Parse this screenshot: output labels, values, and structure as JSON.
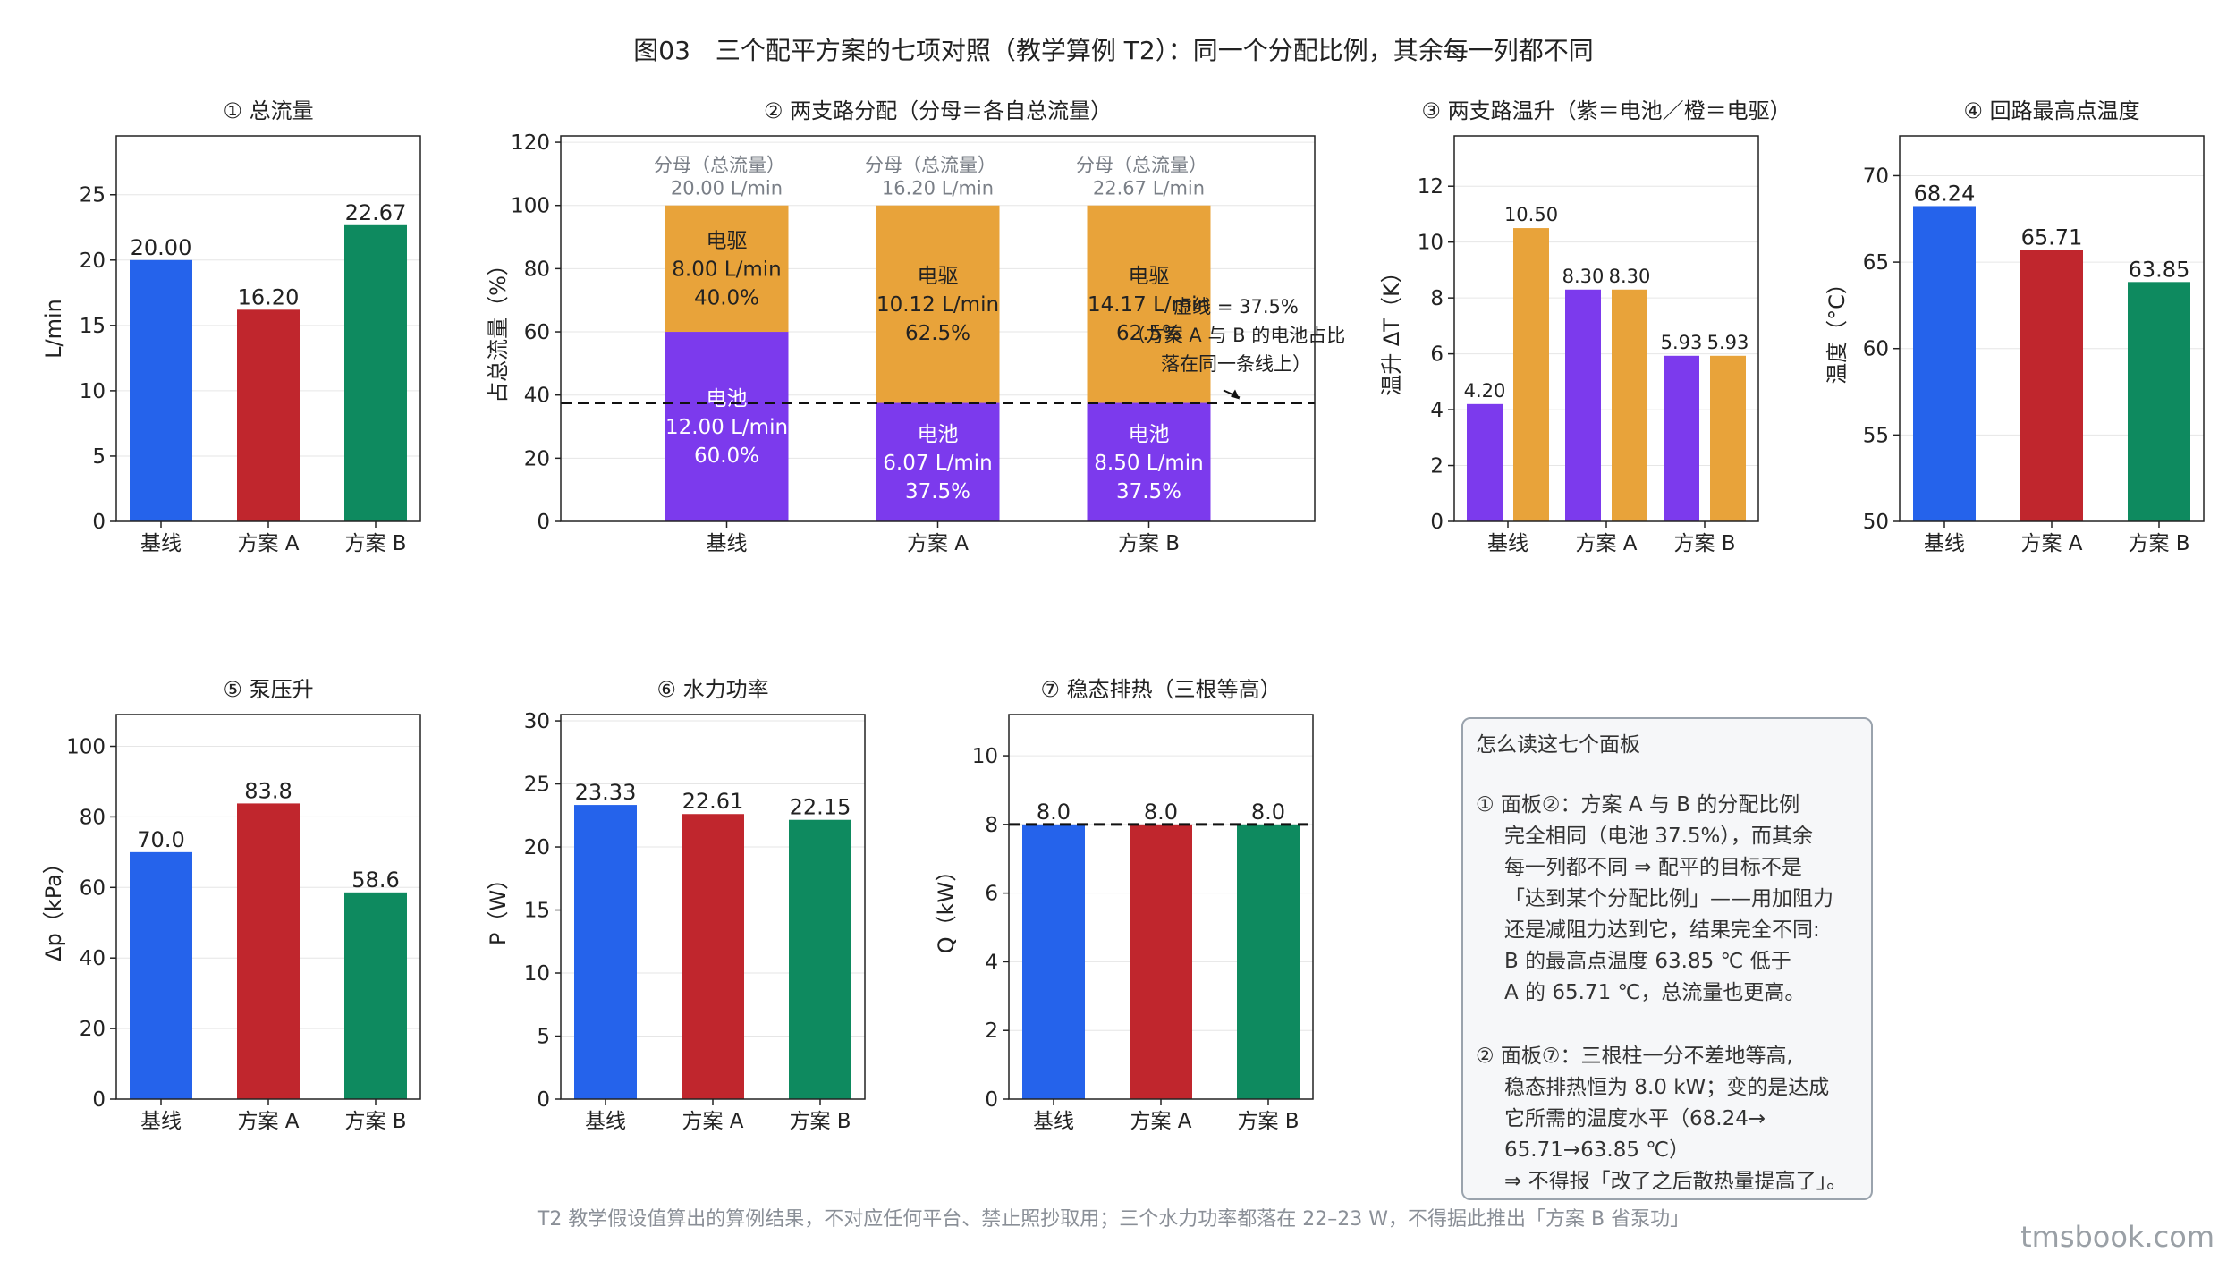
{
  "figure_title": "图03　三个配平方案的七项对照（教学算例 T2）：同一个分配比例，其余每一列都不同",
  "footer_note": "T2 教学假设值算出的算例结果，不对应任何平台、禁止照抄取用；三个水力功率都落在 22–23 W，不得据此推出「方案 B 省泵功」",
  "watermark": "tmsbook.com",
  "colors": {
    "baseline": "#2563EB",
    "plan_a": "#C0262D",
    "plan_b": "#0E8A5F",
    "battery": "#7C3AED",
    "motor": "#E8A33A"
  },
  "chart_data": [
    {
      "id": "p1",
      "type": "bar",
      "title": "① 总流量",
      "ylabel": "L/min",
      "categories": [
        "基线",
        "方案 A",
        "方案 B"
      ],
      "values": [
        20.0,
        16.2,
        22.67
      ],
      "value_labels": [
        "20.00",
        "16.20",
        "22.67"
      ],
      "ylim": [
        0,
        29.5
      ],
      "yticks": [
        0,
        5,
        10,
        15,
        20,
        25
      ],
      "grid": true
    },
    {
      "id": "p2",
      "type": "bar",
      "stacked": true,
      "title": "② 两支路分配（分母＝各自总流量）",
      "ylabel": "占总流量（%）",
      "categories": [
        "基线",
        "方案 A",
        "方案 B"
      ],
      "series": [
        {
          "name": "电池",
          "values": [
            60.0,
            37.5,
            37.5
          ],
          "flow_labels": [
            "12.00 L/min",
            "6.07 L/min",
            "8.50 L/min"
          ],
          "pct_labels": [
            "60.0%",
            "37.5%",
            "37.5%"
          ]
        },
        {
          "name": "电驱",
          "values": [
            40.0,
            62.5,
            62.5
          ],
          "flow_labels": [
            "8.00 L/min",
            "10.12 L/min",
            "14.17 L/min"
          ],
          "pct_labels": [
            "40.0%",
            "62.5%",
            "62.5%"
          ]
        }
      ],
      "denominator_caption": "分母（总流量）",
      "denominator_values": [
        "20.00 L/min",
        "16.20 L/min",
        "22.67 L/min"
      ],
      "reference_line": 37.5,
      "annotation_lines": [
        "虚线 = 37.5%",
        "（方案 A 与 B 的电池占比",
        "落在同一条线上）"
      ],
      "ylim": [
        0,
        122
      ],
      "yticks": [
        0,
        20,
        40,
        60,
        80,
        100,
        120
      ],
      "grid": true
    },
    {
      "id": "p3",
      "type": "bar",
      "grouped": true,
      "title": "③ 两支路温升（紫＝电池／橙＝电驱）",
      "ylabel": "温升 ΔT（K）",
      "categories": [
        "基线",
        "方案 A",
        "方案 B"
      ],
      "series": [
        {
          "name": "电池",
          "values": [
            4.2,
            8.3,
            5.93
          ],
          "labels": [
            "4.20",
            "8.30",
            "5.93"
          ]
        },
        {
          "name": "电驱",
          "values": [
            10.5,
            8.3,
            5.93
          ],
          "labels": [
            "10.50",
            "8.30",
            "5.93"
          ]
        }
      ],
      "ylim": [
        0,
        13.8
      ],
      "yticks": [
        0,
        2,
        4,
        6,
        8,
        10,
        12
      ],
      "grid": true
    },
    {
      "id": "p4",
      "type": "bar",
      "title": "④ 回路最高点温度",
      "ylabel": "温度（°C）",
      "categories": [
        "基线",
        "方案 A",
        "方案 B"
      ],
      "values": [
        68.24,
        65.71,
        63.85
      ],
      "value_labels": [
        "68.24",
        "65.71",
        "63.85"
      ],
      "ylim": [
        50,
        72.3
      ],
      "yticks": [
        50,
        55,
        60,
        65,
        70
      ],
      "grid": true
    },
    {
      "id": "p5",
      "type": "bar",
      "title": "⑤ 泵压升",
      "ylabel": "Δp（kPa）",
      "categories": [
        "基线",
        "方案 A",
        "方案 B"
      ],
      "values": [
        70.0,
        83.8,
        58.6
      ],
      "value_labels": [
        "70.0",
        "83.8",
        "58.6"
      ],
      "ylim": [
        0,
        109
      ],
      "yticks": [
        0,
        20,
        40,
        60,
        80,
        100
      ],
      "grid": true
    },
    {
      "id": "p6",
      "type": "bar",
      "title": "⑥ 水力功率",
      "ylabel": "P（W）",
      "categories": [
        "基线",
        "方案 A",
        "方案 B"
      ],
      "values": [
        23.33,
        22.61,
        22.15
      ],
      "value_labels": [
        "23.33",
        "22.61",
        "22.15"
      ],
      "ylim": [
        0,
        30.5
      ],
      "yticks": [
        0,
        5,
        10,
        15,
        20,
        25,
        30
      ],
      "grid": true
    },
    {
      "id": "p7",
      "type": "bar",
      "title": "⑦ 稳态排热（三根等高）",
      "ylabel": "Q（kW）",
      "categories": [
        "基线",
        "方案 A",
        "方案 B"
      ],
      "values": [
        8.0,
        8.0,
        8.0
      ],
      "value_labels": [
        "8.0",
        "8.0",
        "8.0"
      ],
      "reference_line": 8.0,
      "ylim": [
        0,
        11.2
      ],
      "yticks": [
        0,
        2,
        4,
        6,
        8,
        10
      ],
      "grid": true
    }
  ],
  "notes": {
    "title": "怎么读这七个面板",
    "paragraphs": [
      [
        "① 面板②：方案 A 与 B 的分配比例",
        "完全相同（电池 37.5%），而其余",
        "每一列都不同 ⇒ 配平的目标不是",
        "「达到某个分配比例」——用加阻力",
        "还是减阻力达到它，结果完全不同:",
        "B 的最高点温度 63.85 ℃ 低于",
        "A 的 65.71 ℃，总流量也更高。"
      ],
      [
        "② 面板⑦：三根柱一分不差地等高,",
        "稳态排热恒为 8.0 kW；变的是达成",
        "它所需的温度水平（68.24→",
        "65.71→63.85 ℃）",
        "⇒ 不得报「改了之后散热量提高了」。"
      ]
    ]
  }
}
